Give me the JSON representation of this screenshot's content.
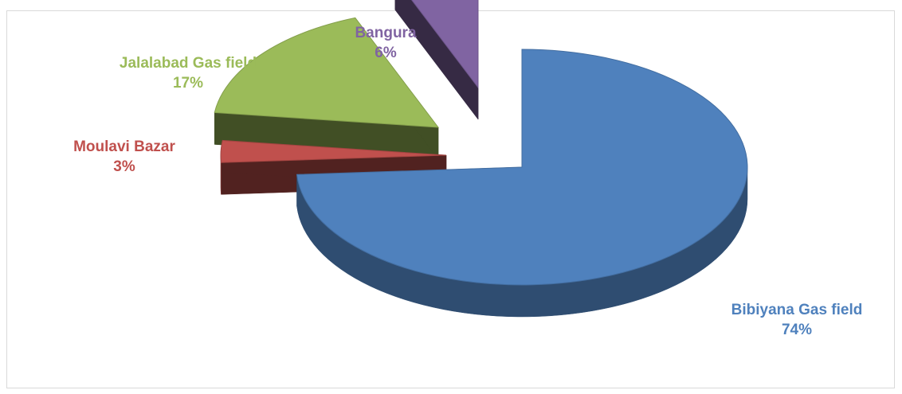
{
  "chart_data": {
    "type": "pie",
    "style": "3d-exploded",
    "slices": [
      {
        "name": "Bibiyana Gas field",
        "percent": "74%",
        "value": 74,
        "color": "#4f81bd",
        "label_color": "#4f81bd"
      },
      {
        "name": "Moulavi Bazar",
        "percent": "3%",
        "value": 3,
        "color": "#c0504d",
        "label_color": "#c0504d"
      },
      {
        "name": "Jalalabad Gas field",
        "percent": "17%",
        "value": 17,
        "color": "#9bbb59",
        "label_color": "#9bbb59"
      },
      {
        "name": "Bangura",
        "percent": "6%",
        "value": 6,
        "color": "#8064a2",
        "label_color": "#8064a2"
      }
    ]
  }
}
